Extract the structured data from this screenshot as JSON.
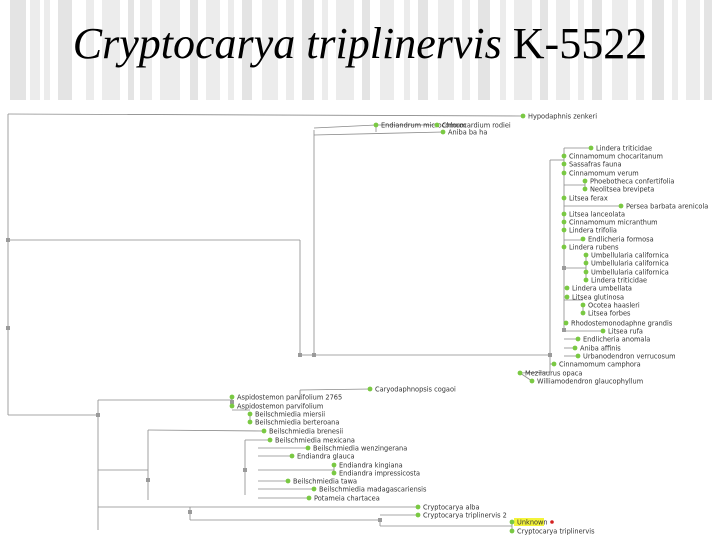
{
  "title": {
    "italic": "Cryptocarya triplinervis",
    "suffix": "K-5522"
  },
  "colors": {
    "tip": "#7ac943",
    "node": "#9a9a9a",
    "highlight": "#f4f43a",
    "marker": "#d32020",
    "line": "#8a8a8a"
  },
  "taxa": [
    "Hypodaphnis zenkeri",
    "Endiandrum microcomum",
    "Chlorocardium rodiei",
    "Aniba ba ha",
    "Lindera triticidae",
    "Cinnamomum chocaritanum",
    "Sassafras fauna",
    "Cinnamomum verum",
    "Phoebotheca confertifolia",
    "Neolitsea brevipeta",
    "Litsea ferax",
    "Persea barbata arenicola",
    "Litsea lanceolata",
    "Cinnamomum micranthum",
    "Lindera trifolia",
    "Endlicheria formosa",
    "Lindera rubens",
    "Umbellularia californica",
    "Umbellularia californica",
    "Umbellularia californica",
    "Lindera triticidae",
    "Lindera umbellata",
    "Litsea glutinosa",
    "Ocotea haasleri",
    "Litsea forbes",
    "Rhodostemonodaphne grandis",
    "Litsea rufa",
    "Endlicheria anomala",
    "Aniba affinis",
    "Urbanodendron verrucosum",
    "Cinnamomum camphora",
    "Mezilaurus opaca",
    "Williamodendron glaucophyllum",
    "Caryodaphnopsis cogaoi",
    "Aspidostemon parvifolium 2765",
    "Aspidostemon parvifolium",
    "Beilschmiedia miersii",
    "Beilschmiedia berteroana",
    "Beilschmiedia brenesii",
    "Beilschmiedia mexicana",
    "Beilschmiedia wenzingerana",
    "Endiandra glauca",
    "Endiandra kingiana",
    "Endiandra impressicosta",
    "Beilschmiedia tawa",
    "Beilschmiedia madagascariensis",
    "Potameia chartacea",
    "Cryptocarya alba",
    "Cryptocarya triplinervis 2",
    "Unknown",
    "Cryptocarya triplinervis"
  ]
}
